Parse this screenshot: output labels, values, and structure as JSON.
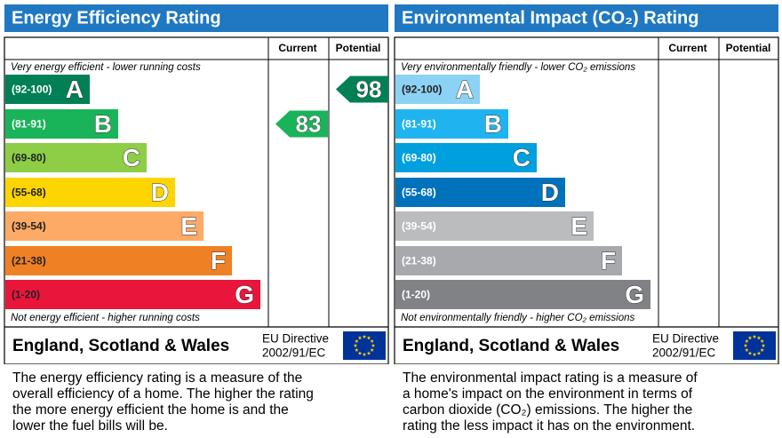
{
  "panels": [
    {
      "title": "Energy Efficiency Rating",
      "columns": [
        "Current",
        "Potential"
      ],
      "top_note": "Very energy efficient - lower running costs",
      "bottom_note": "Not energy efficient - higher running costs",
      "bands": [
        {
          "range": "(92-100)",
          "letter": "A",
          "color": "#008054"
        },
        {
          "range": "(81-91)",
          "letter": "B",
          "color": "#19b459"
        },
        {
          "range": "(69-80)",
          "letter": "C",
          "color": "#8dce46"
        },
        {
          "range": "(55-68)",
          "letter": "D",
          "color": "#ffd500"
        },
        {
          "range": "(39-54)",
          "letter": "E",
          "color": "#fcaa65"
        },
        {
          "range": "(21-38)",
          "letter": "F",
          "color": "#ef8023"
        },
        {
          "range": "(1-20)",
          "letter": "G",
          "color": "#e9153b"
        }
      ],
      "current": 83,
      "potential": 98,
      "footer": {
        "region": "England, Scotland & Wales",
        "directive": [
          "EU Directive",
          "2002/91/EC"
        ]
      },
      "description": [
        "The energy efficiency rating is a measure of the",
        "overall efficiency of a home. The higher the rating",
        "the more energy efficient the home is and the",
        "lower the fuel bills will be."
      ]
    },
    {
      "title": "Environmental Impact (CO₂) Rating",
      "columns": [
        "Current",
        "Potential"
      ],
      "top_note": "Very environmentally friendly - lower CO₂ emissions",
      "bottom_note": "Not environmentally friendly - higher CO₂ emissions",
      "bands": [
        {
          "range": "(92-100)",
          "letter": "A",
          "color": "#8cd2f4"
        },
        {
          "range": "(81-91)",
          "letter": "B",
          "color": "#1fb4ef"
        },
        {
          "range": "(69-80)",
          "letter": "C",
          "color": "#00a0df"
        },
        {
          "range": "(55-68)",
          "letter": "D",
          "color": "#0072bb"
        },
        {
          "range": "(39-54)",
          "letter": "E",
          "color": "#bbbcbe"
        },
        {
          "range": "(21-38)",
          "letter": "F",
          "color": "#a7a9ac"
        },
        {
          "range": "(1-20)",
          "letter": "G",
          "color": "#808285"
        }
      ],
      "footer": {
        "region": "England, Scotland & Wales",
        "directive": [
          "EU Directive",
          "2002/91/EC"
        ]
      },
      "description": [
        "The environmental impact rating is a measure of",
        "a home's impact on the environment in terms of",
        "carbon dioxide (CO₂) emissions. The higher the",
        "rating the less impact it has on the environment."
      ]
    }
  ]
}
